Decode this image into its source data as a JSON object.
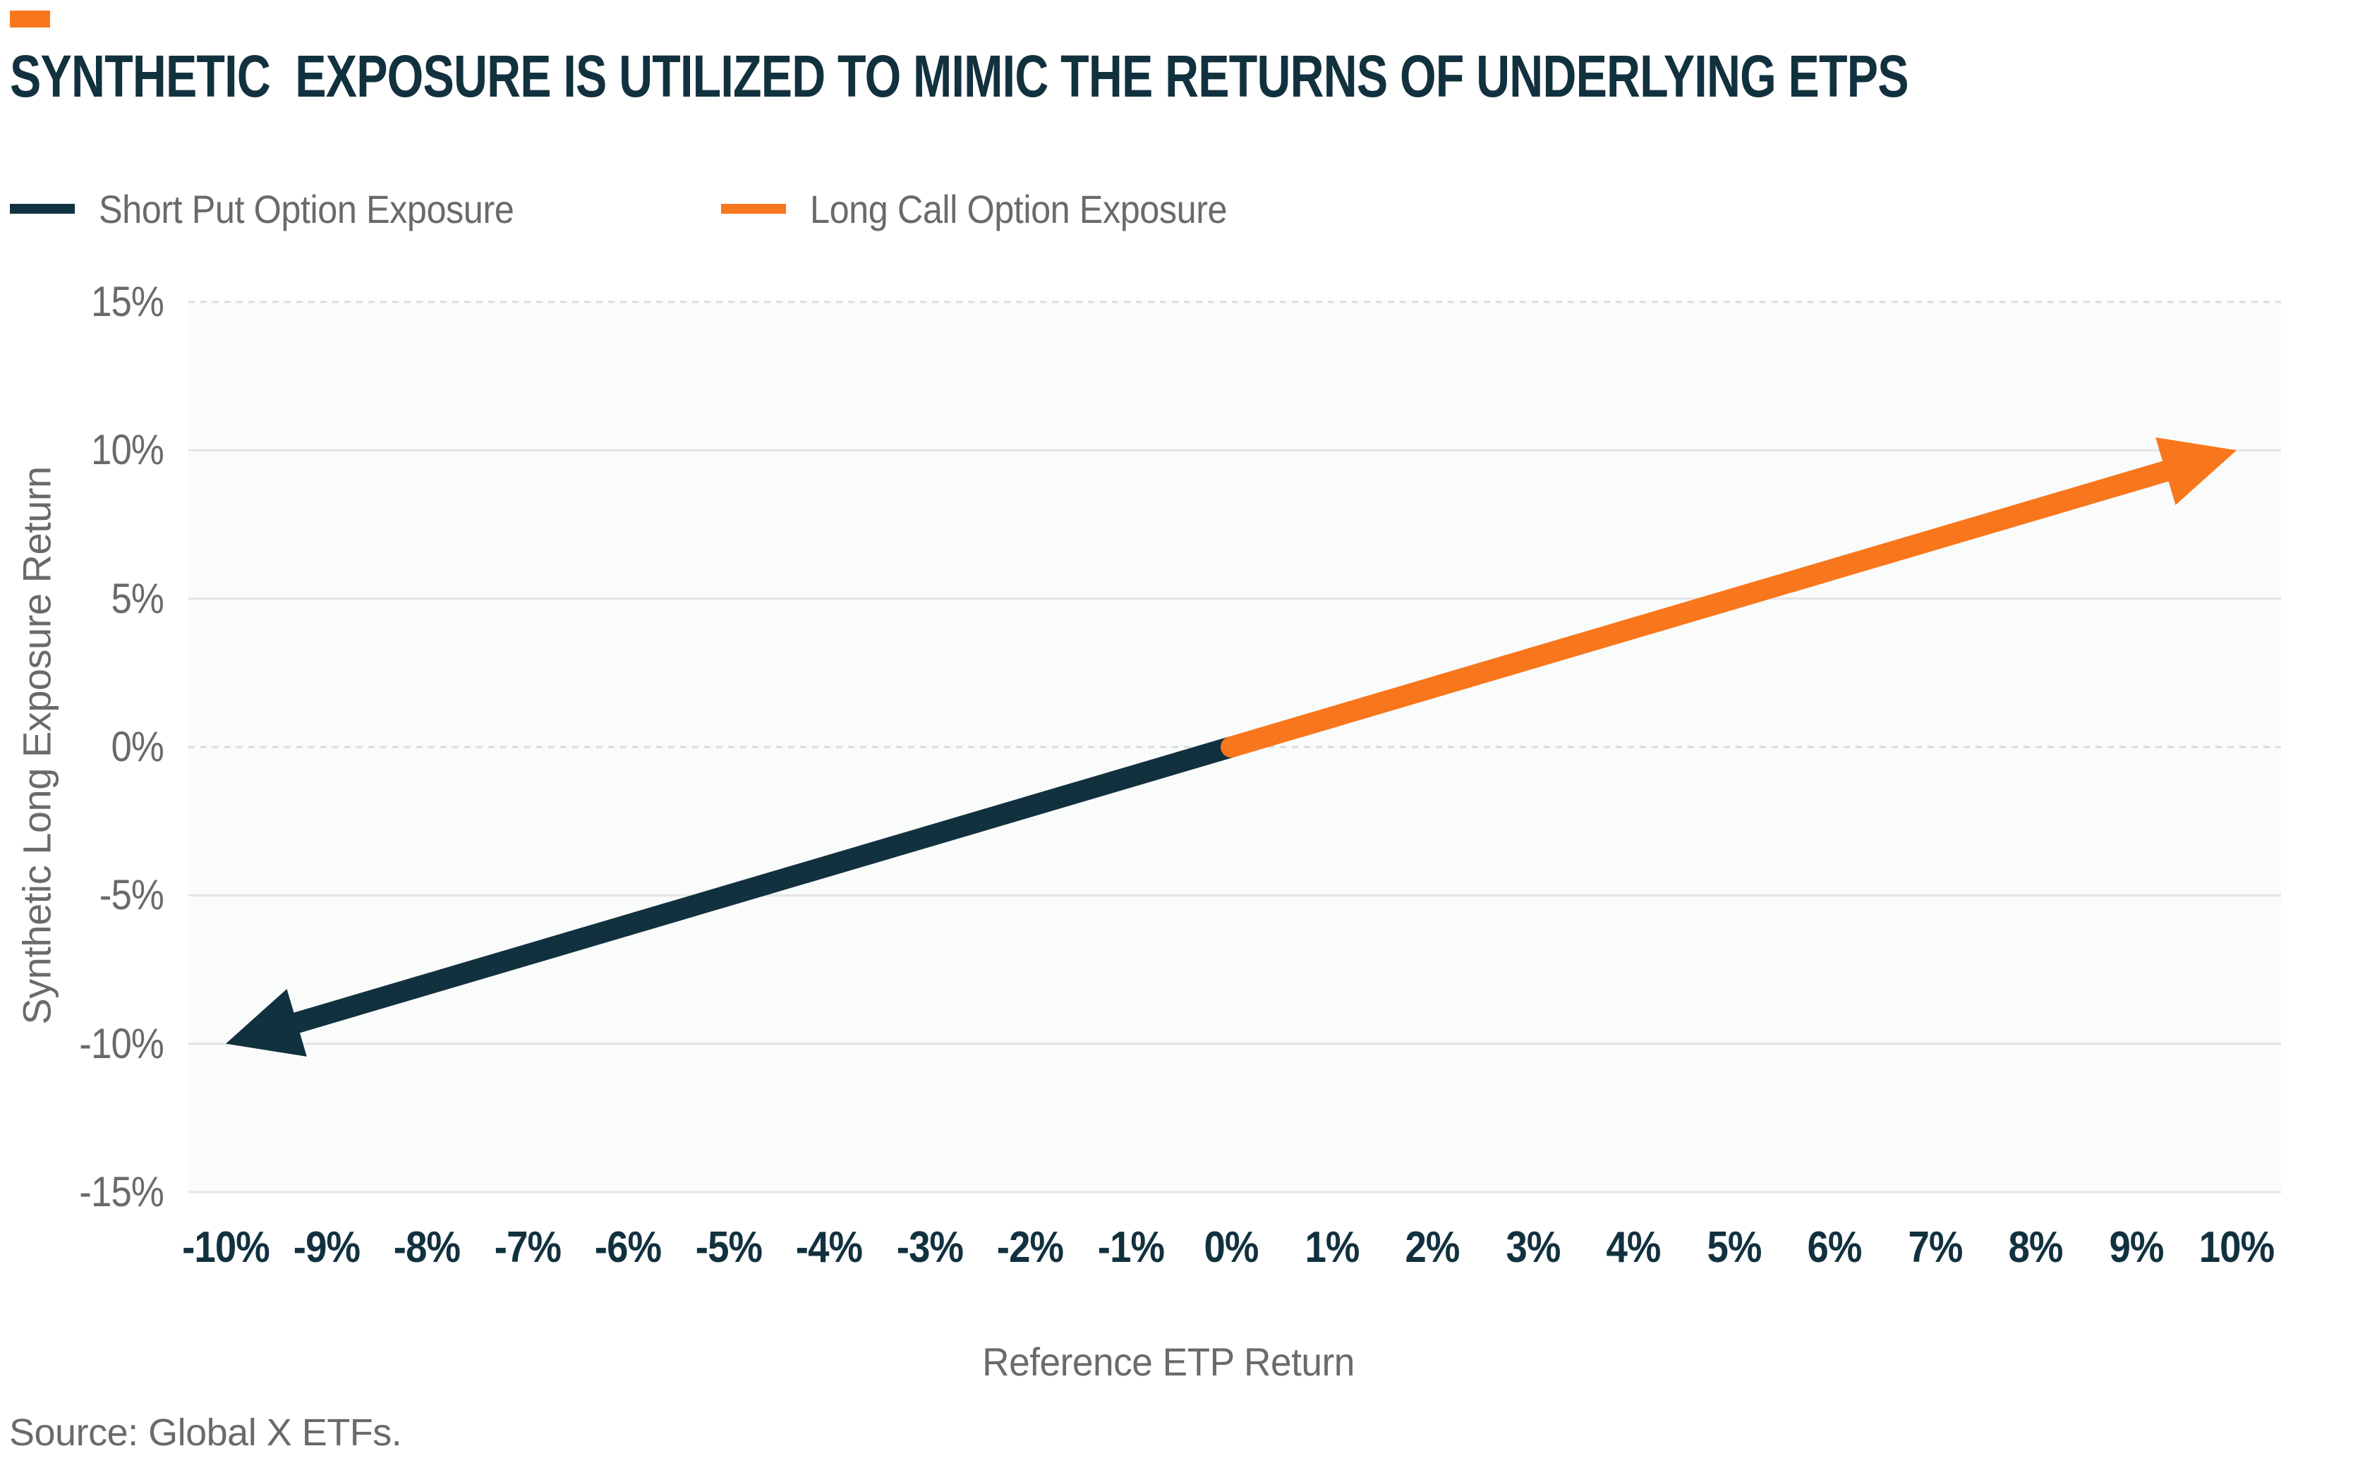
{
  "title": "SYNTHETIC  EXPOSURE IS UTILIZED TO MIMIC THE RETURNS OF UNDERLYING ETPS",
  "source": "Source: Global X ETFs.",
  "colors": {
    "brand_dark": "#12313F",
    "brand_orange": "#F8771C",
    "text_gray": "#6A6A6A",
    "gridline": "#E4E4E6",
    "gridline_dashed": "#DCDCDC",
    "plot_background": "#FAFBFB"
  },
  "legend": {
    "items": [
      {
        "label": "Short Put Option Exposure",
        "color": "#12313F"
      },
      {
        "label": "Long Call Option Exposure",
        "color": "#F8771C"
      }
    ]
  },
  "chart_data": {
    "type": "line",
    "title": "SYNTHETIC  EXPOSURE IS UTILIZED TO MIMIC THE RETURNS OF UNDERLYING ETPS",
    "xlabel": "Reference ETP Return",
    "ylabel": "Synthetic Long Exposure Return",
    "x_ticks": [
      "-10%",
      "-9%",
      "-8%",
      "-7%",
      "-6%",
      "-5%",
      "-4%",
      "-3%",
      "-2%",
      "-1%",
      "0%",
      "1%",
      "2%",
      "3%",
      "4%",
      "5%",
      "6%",
      "7%",
      "8%",
      "9%",
      "10%"
    ],
    "y_ticks": [
      "15%",
      "10%",
      "5%",
      "0%",
      "-5%",
      "-10%",
      "-15%"
    ],
    "xlim": [
      -10.4,
      10.4
    ],
    "ylim": [
      -15,
      15
    ],
    "grid": "horizontal",
    "dashed_gridlines_at": [
      15,
      0
    ],
    "legend_position": "top-left",
    "series": [
      {
        "name": "Short Put Option Exposure",
        "color": "#12313F",
        "x": [
          0,
          -10
        ],
        "y": [
          0,
          -10
        ],
        "arrow_end": true
      },
      {
        "name": "Long Call Option Exposure",
        "color": "#F8771C",
        "x": [
          0,
          10
        ],
        "y": [
          0,
          10
        ],
        "arrow_end": true
      }
    ]
  }
}
